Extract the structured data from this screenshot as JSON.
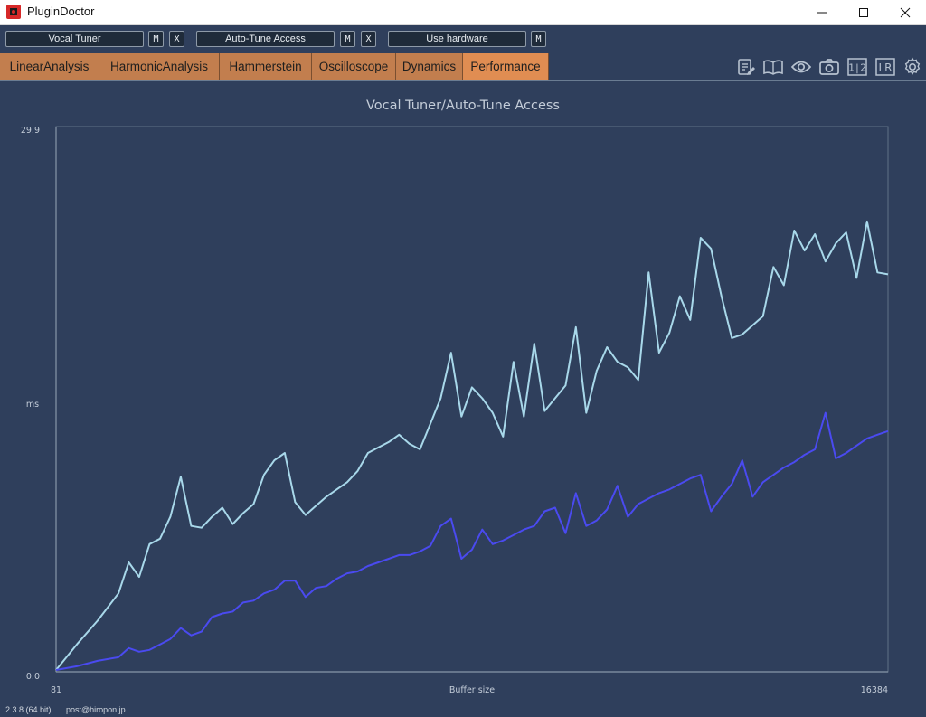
{
  "window": {
    "title": "PluginDoctor",
    "controls": [
      "minimize-icon",
      "maximize-icon",
      "close-icon"
    ]
  },
  "toolbar": {
    "plugin_a": {
      "name": "Vocal Tuner",
      "m_label": "M",
      "x_label": "X"
    },
    "plugin_b": {
      "name": "Auto-Tune Access",
      "m_label": "M",
      "x_label": "X"
    },
    "hardware": {
      "name": "Use hardware",
      "m_label": "M"
    }
  },
  "tabs": [
    {
      "label": "LinearAnalysis",
      "active": false
    },
    {
      "label": "HarmonicAnalysis",
      "active": false
    },
    {
      "label": "Hammerstein",
      "active": false
    },
    {
      "label": "Oscilloscope",
      "active": false
    },
    {
      "label": "Dynamics",
      "active": false
    },
    {
      "label": "Performance",
      "active": true
    }
  ],
  "tool_icons": [
    "notes-edit-icon",
    "manual-book-icon",
    "eye-icon",
    "camera-icon",
    "one-two-icon",
    "lr-icon",
    "gear-icon"
  ],
  "tool_icon_texts": {
    "one_two": "1|2",
    "lr": "LR"
  },
  "colors": {
    "background": "#2f3f5c",
    "tab": "#c27e4e",
    "tab_active": "#e08d52",
    "series_a": "#a8d8ea",
    "series_b": "#4a4af0"
  },
  "chart_data": {
    "type": "line",
    "title": "Vocal Tuner/Auto-Tune Access",
    "xlabel": "Buffer size",
    "ylabel": "ms",
    "x_tick_labels": [
      "81",
      "16384"
    ],
    "y_tick_labels": [
      "0.0",
      "29.9"
    ],
    "xlim": [
      81,
      16384
    ],
    "ylim": [
      0.0,
      29.9
    ],
    "grid": false,
    "series": [
      {
        "color": "#a8d8ea",
        "points": [
          [
            81,
            0.1
          ],
          [
            488,
            1.5
          ],
          [
            895,
            2.8
          ],
          [
            1303,
            4.3
          ],
          [
            1506,
            6.0
          ],
          [
            1710,
            5.2
          ],
          [
            1913,
            7.0
          ],
          [
            2118,
            7.3
          ],
          [
            2321,
            8.5
          ],
          [
            2525,
            10.7
          ],
          [
            2728,
            8.0
          ],
          [
            2932,
            7.9
          ],
          [
            3136,
            8.5
          ],
          [
            3340,
            9.0
          ],
          [
            3544,
            8.1
          ],
          [
            3747,
            8.7
          ],
          [
            3951,
            9.2
          ],
          [
            4155,
            10.8
          ],
          [
            4358,
            11.6
          ],
          [
            4562,
            12.0
          ],
          [
            4766,
            9.3
          ],
          [
            4970,
            8.6
          ],
          [
            5173,
            9.1
          ],
          [
            5377,
            9.6
          ],
          [
            5581,
            10.0
          ],
          [
            5785,
            10.4
          ],
          [
            5988,
            11.0
          ],
          [
            6192,
            12.0
          ],
          [
            6396,
            12.3
          ],
          [
            6600,
            12.6
          ],
          [
            6803,
            13.0
          ],
          [
            7007,
            12.5
          ],
          [
            7211,
            12.2
          ],
          [
            7415,
            13.6
          ],
          [
            7618,
            15.0
          ],
          [
            7822,
            17.5
          ],
          [
            8026,
            14.0
          ],
          [
            8230,
            15.6
          ],
          [
            8433,
            15.0
          ],
          [
            8637,
            14.2
          ],
          [
            8841,
            12.9
          ],
          [
            9045,
            17.0
          ],
          [
            9248,
            14.0
          ],
          [
            9452,
            18.0
          ],
          [
            9656,
            14.3
          ],
          [
            9860,
            15.0
          ],
          [
            10064,
            15.7
          ],
          [
            10267,
            18.9
          ],
          [
            10471,
            14.2
          ],
          [
            10675,
            16.5
          ],
          [
            10878,
            17.8
          ],
          [
            11082,
            17.0
          ],
          [
            11286,
            16.7
          ],
          [
            11490,
            16.0
          ],
          [
            11693,
            21.9
          ],
          [
            11897,
            17.5
          ],
          [
            12101,
            18.6
          ],
          [
            12304,
            20.6
          ],
          [
            12508,
            19.3
          ],
          [
            12712,
            23.8
          ],
          [
            12916,
            23.2
          ],
          [
            13119,
            20.6
          ],
          [
            13323,
            18.3
          ],
          [
            13527,
            18.5
          ],
          [
            13731,
            19.0
          ],
          [
            13934,
            19.5
          ],
          [
            14138,
            22.2
          ],
          [
            14342,
            21.2
          ],
          [
            14546,
            24.2
          ],
          [
            14749,
            23.1
          ],
          [
            14953,
            24.0
          ],
          [
            15157,
            22.5
          ],
          [
            15361,
            23.5
          ],
          [
            15564,
            24.1
          ],
          [
            15768,
            21.6
          ],
          [
            15972,
            24.7
          ],
          [
            16176,
            21.9
          ],
          [
            16384,
            21.8
          ]
        ]
      },
      {
        "color": "#4a4af0",
        "points": [
          [
            81,
            0.1
          ],
          [
            488,
            0.3
          ],
          [
            895,
            0.6
          ],
          [
            1303,
            0.8
          ],
          [
            1506,
            1.3
          ],
          [
            1710,
            1.1
          ],
          [
            1913,
            1.2
          ],
          [
            2118,
            1.5
          ],
          [
            2321,
            1.8
          ],
          [
            2525,
            2.4
          ],
          [
            2728,
            2.0
          ],
          [
            2932,
            2.2
          ],
          [
            3136,
            3.0
          ],
          [
            3340,
            3.2
          ],
          [
            3544,
            3.3
          ],
          [
            3747,
            3.8
          ],
          [
            3951,
            3.9
          ],
          [
            4155,
            4.3
          ],
          [
            4358,
            4.5
          ],
          [
            4562,
            5.0
          ],
          [
            4766,
            5.0
          ],
          [
            4970,
            4.1
          ],
          [
            5173,
            4.6
          ],
          [
            5377,
            4.7
          ],
          [
            5581,
            5.1
          ],
          [
            5785,
            5.4
          ],
          [
            5988,
            5.5
          ],
          [
            6192,
            5.8
          ],
          [
            6396,
            6.0
          ],
          [
            6600,
            6.2
          ],
          [
            6803,
            6.4
          ],
          [
            7007,
            6.4
          ],
          [
            7211,
            6.6
          ],
          [
            7415,
            6.9
          ],
          [
            7618,
            8.0
          ],
          [
            7822,
            8.4
          ],
          [
            8026,
            6.2
          ],
          [
            8230,
            6.7
          ],
          [
            8433,
            7.8
          ],
          [
            8637,
            7.0
          ],
          [
            8841,
            7.2
          ],
          [
            9045,
            7.5
          ],
          [
            9248,
            7.8
          ],
          [
            9452,
            8.0
          ],
          [
            9656,
            8.8
          ],
          [
            9860,
            9.0
          ],
          [
            10064,
            7.6
          ],
          [
            10267,
            9.8
          ],
          [
            10471,
            8.0
          ],
          [
            10675,
            8.3
          ],
          [
            10878,
            8.9
          ],
          [
            11082,
            10.2
          ],
          [
            11286,
            8.5
          ],
          [
            11490,
            9.2
          ],
          [
            11693,
            9.5
          ],
          [
            11897,
            9.8
          ],
          [
            12101,
            10.0
          ],
          [
            12304,
            10.3
          ],
          [
            12508,
            10.6
          ],
          [
            12712,
            10.8
          ],
          [
            12916,
            8.8
          ],
          [
            13119,
            9.6
          ],
          [
            13323,
            10.3
          ],
          [
            13527,
            11.6
          ],
          [
            13731,
            9.6
          ],
          [
            13934,
            10.4
          ],
          [
            14138,
            10.8
          ],
          [
            14342,
            11.2
          ],
          [
            14546,
            11.5
          ],
          [
            14749,
            11.9
          ],
          [
            14953,
            12.2
          ],
          [
            15157,
            14.2
          ],
          [
            15361,
            11.7
          ],
          [
            15564,
            12.0
          ],
          [
            15768,
            12.4
          ],
          [
            15972,
            12.8
          ],
          [
            16176,
            13.0
          ],
          [
            16384,
            13.2
          ]
        ]
      }
    ]
  },
  "footer": {
    "version": "2.3.8 (64 bit)",
    "email": "post@hiropon.jp"
  }
}
